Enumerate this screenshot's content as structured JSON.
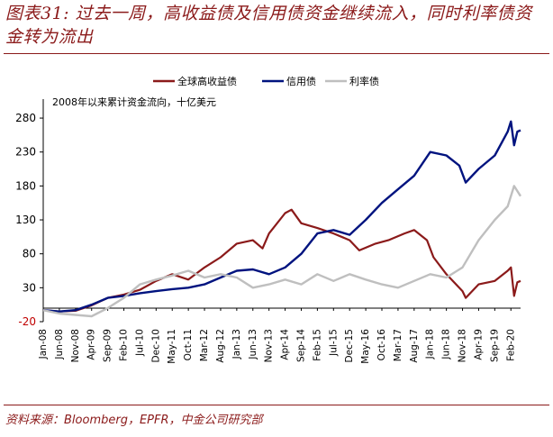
{
  "header": {
    "title": "图表31: 过去一周，高收益债及信用债资金继续流入，同时利率债资金转为流出"
  },
  "footer": {
    "source": "资料来源：Bloomberg，EPFR，中金公司研究部"
  },
  "chart_data": {
    "type": "line",
    "annotation": "2008年以来累计资金流向，十亿美元",
    "ylim": [
      -20,
      300
    ],
    "yticks": [
      -20,
      30,
      80,
      130,
      180,
      230,
      280
    ],
    "grid": false,
    "legend_position": "top",
    "x_tick_labels": [
      "Jan-08",
      "Jun-08",
      "Nov-08",
      "Apr-09",
      "Sep-09",
      "Feb-10",
      "Jul-10",
      "Dec-10",
      "May-11",
      "Oct-11",
      "Mar-12",
      "Aug-12",
      "Jan-13",
      "Jun-13",
      "Nov-13",
      "Apr-14",
      "Sep-14",
      "Feb-15",
      "Jul-15",
      "Dec-15",
      "May-16",
      "Oct-16",
      "Mar-17",
      "Aug-17",
      "Jan-18",
      "Jun-18",
      "Nov-18",
      "Apr-19",
      "Sep-19",
      "Feb-20"
    ],
    "x_start": "2008-01",
    "x_end": "2020-05",
    "series": [
      {
        "name": "全球高收益债",
        "color": "#8b1a1a",
        "points": [
          [
            "2008-01",
            -3
          ],
          [
            "2008-06",
            -5
          ],
          [
            "2008-11",
            -4
          ],
          [
            "2009-04",
            4
          ],
          [
            "2009-09",
            15
          ],
          [
            "2010-02",
            20
          ],
          [
            "2010-07",
            27
          ],
          [
            "2010-12",
            40
          ],
          [
            "2011-05",
            50
          ],
          [
            "2011-10",
            42
          ],
          [
            "2012-03",
            60
          ],
          [
            "2012-08",
            75
          ],
          [
            "2013-01",
            95
          ],
          [
            "2013-06",
            100
          ],
          [
            "2013-09",
            88
          ],
          [
            "2013-11",
            110
          ],
          [
            "2014-04",
            140
          ],
          [
            "2014-06",
            145
          ],
          [
            "2014-09",
            125
          ],
          [
            "2015-02",
            118
          ],
          [
            "2015-07",
            110
          ],
          [
            "2015-12",
            100
          ],
          [
            "2016-03",
            85
          ],
          [
            "2016-08",
            95
          ],
          [
            "2016-12",
            100
          ],
          [
            "2017-05",
            110
          ],
          [
            "2017-08",
            115
          ],
          [
            "2017-12",
            100
          ],
          [
            "2018-02",
            75
          ],
          [
            "2018-06",
            50
          ],
          [
            "2018-11",
            25
          ],
          [
            "2018-12",
            15
          ],
          [
            "2019-04",
            35
          ],
          [
            "2019-09",
            40
          ],
          [
            "2020-01",
            55
          ],
          [
            "2020-02",
            60
          ],
          [
            "2020-03",
            18
          ],
          [
            "2020-04",
            38
          ],
          [
            "2020-05",
            40
          ]
        ]
      },
      {
        "name": "信用债",
        "color": "#00137f",
        "points": [
          [
            "2008-01",
            -3
          ],
          [
            "2008-06",
            -5
          ],
          [
            "2008-11",
            -3
          ],
          [
            "2009-04",
            5
          ],
          [
            "2009-09",
            15
          ],
          [
            "2010-02",
            18
          ],
          [
            "2010-07",
            22
          ],
          [
            "2010-12",
            25
          ],
          [
            "2011-05",
            28
          ],
          [
            "2011-10",
            30
          ],
          [
            "2012-03",
            35
          ],
          [
            "2012-08",
            45
          ],
          [
            "2013-01",
            55
          ],
          [
            "2013-06",
            57
          ],
          [
            "2013-11",
            50
          ],
          [
            "2014-04",
            60
          ],
          [
            "2014-09",
            80
          ],
          [
            "2015-02",
            110
          ],
          [
            "2015-07",
            115
          ],
          [
            "2015-12",
            108
          ],
          [
            "2016-05",
            130
          ],
          [
            "2016-10",
            155
          ],
          [
            "2017-03",
            175
          ],
          [
            "2017-08",
            195
          ],
          [
            "2018-01",
            230
          ],
          [
            "2018-06",
            225
          ],
          [
            "2018-10",
            210
          ],
          [
            "2018-12",
            185
          ],
          [
            "2019-04",
            205
          ],
          [
            "2019-09",
            225
          ],
          [
            "2020-01",
            260
          ],
          [
            "2020-02",
            275
          ],
          [
            "2020-03",
            240
          ],
          [
            "2020-04",
            260
          ],
          [
            "2020-05",
            262
          ]
        ]
      },
      {
        "name": "利率债",
        "color": "#bfbfbf",
        "points": [
          [
            "2008-01",
            -3
          ],
          [
            "2008-06",
            -8
          ],
          [
            "2008-11",
            -10
          ],
          [
            "2009-04",
            -12
          ],
          [
            "2009-09",
            0
          ],
          [
            "2010-02",
            15
          ],
          [
            "2010-07",
            35
          ],
          [
            "2010-12",
            42
          ],
          [
            "2011-05",
            48
          ],
          [
            "2011-10",
            55
          ],
          [
            "2012-03",
            45
          ],
          [
            "2012-08",
            50
          ],
          [
            "2013-01",
            45
          ],
          [
            "2013-06",
            30
          ],
          [
            "2013-11",
            35
          ],
          [
            "2014-04",
            42
          ],
          [
            "2014-09",
            35
          ],
          [
            "2015-02",
            50
          ],
          [
            "2015-07",
            40
          ],
          [
            "2015-12",
            50
          ],
          [
            "2016-05",
            42
          ],
          [
            "2016-10",
            35
          ],
          [
            "2017-03",
            30
          ],
          [
            "2017-08",
            40
          ],
          [
            "2018-01",
            50
          ],
          [
            "2018-06",
            45
          ],
          [
            "2018-11",
            60
          ],
          [
            "2019-04",
            100
          ],
          [
            "2019-09",
            130
          ],
          [
            "2020-01",
            150
          ],
          [
            "2020-03",
            180
          ],
          [
            "2020-05",
            165
          ]
        ]
      }
    ]
  }
}
